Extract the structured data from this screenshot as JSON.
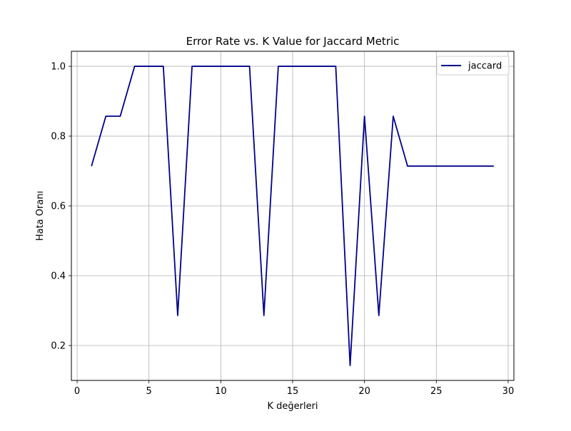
{
  "chart_data": {
    "type": "line",
    "title": "Error Rate vs. K Value for Jaccard Metric",
    "xlabel": "K değerleri",
    "ylabel": "Hata Oranı",
    "xlim": [
      -0.4,
      30.4
    ],
    "ylim": [
      0.1,
      1.043
    ],
    "xticks": [
      0,
      5,
      10,
      15,
      20,
      25,
      30
    ],
    "xtick_labels": [
      "0",
      "5",
      "10",
      "15",
      "20",
      "25",
      "30"
    ],
    "yticks": [
      0.2,
      0.4,
      0.6,
      0.8,
      1.0
    ],
    "ytick_labels": [
      "0.2",
      "0.4",
      "0.6",
      "0.8",
      "1.0"
    ],
    "grid": true,
    "legend_position": "top-right",
    "series": [
      {
        "name": "jaccard",
        "color": "#00008b",
        "x": [
          1,
          2,
          3,
          4,
          5,
          6,
          7,
          8,
          9,
          10,
          11,
          12,
          13,
          14,
          15,
          16,
          17,
          18,
          19,
          20,
          21,
          22,
          23,
          24,
          25,
          26,
          27,
          28,
          29
        ],
        "y": [
          0.714,
          0.857,
          0.857,
          1.0,
          1.0,
          1.0,
          0.286,
          1.0,
          1.0,
          1.0,
          1.0,
          1.0,
          0.286,
          1.0,
          1.0,
          1.0,
          1.0,
          1.0,
          0.143,
          0.857,
          0.286,
          0.857,
          0.714,
          0.714,
          0.714,
          0.714,
          0.714,
          0.714,
          0.714
        ]
      }
    ]
  }
}
